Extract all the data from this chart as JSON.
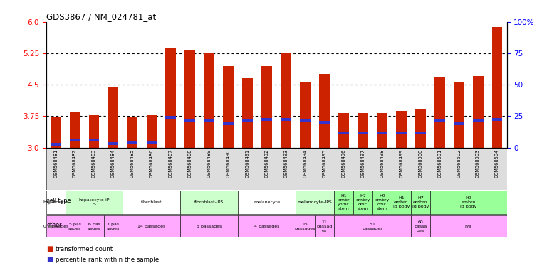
{
  "title": "GDS3867 / NM_024781_at",
  "samples": [
    "GSM568481",
    "GSM568482",
    "GSM568483",
    "GSM568484",
    "GSM568485",
    "GSM568486",
    "GSM568487",
    "GSM568488",
    "GSM568489",
    "GSM568490",
    "GSM568491",
    "GSM568492",
    "GSM568493",
    "GSM568494",
    "GSM568495",
    "GSM568496",
    "GSM568497",
    "GSM568498",
    "GSM568499",
    "GSM568500",
    "GSM568501",
    "GSM568502",
    "GSM568503",
    "GSM568504"
  ],
  "transformed_count": [
    3.72,
    3.84,
    3.78,
    4.43,
    3.72,
    3.78,
    5.38,
    5.33,
    5.25,
    4.95,
    4.65,
    4.95,
    5.25,
    4.55,
    4.75,
    3.82,
    3.82,
    3.83,
    3.88,
    3.93,
    4.68,
    4.55,
    4.7,
    5.88
  ],
  "percentile_pos": [
    3.08,
    3.18,
    3.18,
    3.1,
    3.13,
    3.13,
    3.73,
    3.65,
    3.65,
    3.58,
    3.65,
    3.68,
    3.68,
    3.65,
    3.6,
    3.35,
    3.35,
    3.35,
    3.35,
    3.35,
    3.65,
    3.58,
    3.65,
    3.68
  ],
  "ylim": [
    3.0,
    6.0
  ],
  "yticks_left": [
    3.0,
    3.75,
    4.5,
    5.25,
    6.0
  ],
  "yticks_right_pct": [
    0,
    25,
    50,
    75,
    100
  ],
  "yticks_right_labels": [
    "0",
    "25",
    "50",
    "75",
    "100%"
  ],
  "gridlines": [
    3.75,
    4.5,
    5.25
  ],
  "bar_color": "#cc2200",
  "blue_color": "#3333cc",
  "cell_type_groups": [
    {
      "label": "hepatocyte",
      "start": 0,
      "end": 0,
      "bg": "#ffffff"
    },
    {
      "label": "hepatocyte-iP\nS",
      "start": 1,
      "end": 3,
      "bg": "#ccffcc"
    },
    {
      "label": "fibroblast",
      "start": 4,
      "end": 6,
      "bg": "#ffffff"
    },
    {
      "label": "fibroblast-IPS",
      "start": 7,
      "end": 9,
      "bg": "#ccffcc"
    },
    {
      "label": "melanocyte",
      "start": 10,
      "end": 12,
      "bg": "#ffffff"
    },
    {
      "label": "melanocyte-IPS",
      "start": 13,
      "end": 14,
      "bg": "#ccffcc"
    },
    {
      "label": "H1\nembr\nyonic\nstem",
      "start": 15,
      "end": 15,
      "bg": "#99ff99"
    },
    {
      "label": "H7\nembry\nonic\nstem",
      "start": 16,
      "end": 16,
      "bg": "#99ff99"
    },
    {
      "label": "H9\nembry\nonic\nstem",
      "start": 17,
      "end": 17,
      "bg": "#99ff99"
    },
    {
      "label": "H1\nembro\nid body",
      "start": 18,
      "end": 18,
      "bg": "#99ff99"
    },
    {
      "label": "H7\nembro\nid body",
      "start": 19,
      "end": 19,
      "bg": "#99ff99"
    },
    {
      "label": "H9\nembro\nid body",
      "start": 20,
      "end": 23,
      "bg": "#99ff99"
    }
  ],
  "other_groups": [
    {
      "label": "0 passages",
      "start": 0,
      "end": 0,
      "bg": "#ffaaff"
    },
    {
      "label": "5 pas\nsages",
      "start": 1,
      "end": 1,
      "bg": "#ffaaff"
    },
    {
      "label": "6 pas\nsages",
      "start": 2,
      "end": 2,
      "bg": "#ffaaff"
    },
    {
      "label": "7 pas\nsages",
      "start": 3,
      "end": 3,
      "bg": "#ffaaff"
    },
    {
      "label": "14 passages",
      "start": 4,
      "end": 6,
      "bg": "#ffaaff"
    },
    {
      "label": "5 passages",
      "start": 7,
      "end": 9,
      "bg": "#ffaaff"
    },
    {
      "label": "4 passages",
      "start": 10,
      "end": 12,
      "bg": "#ffaaff"
    },
    {
      "label": "15\npassages",
      "start": 13,
      "end": 13,
      "bg": "#ffaaff"
    },
    {
      "label": "11\npassag\nes",
      "start": 14,
      "end": 14,
      "bg": "#ffaaff"
    },
    {
      "label": "50\npassages",
      "start": 15,
      "end": 18,
      "bg": "#ffaaff"
    },
    {
      "label": "60\npassa\nges",
      "start": 19,
      "end": 19,
      "bg": "#ffaaff"
    },
    {
      "label": "n/a",
      "start": 20,
      "end": 23,
      "bg": "#ffaaff"
    }
  ],
  "legend_items": [
    {
      "label": "transformed count",
      "color": "#cc2200"
    },
    {
      "label": "percentile rank within the sample",
      "color": "#3333cc"
    }
  ]
}
